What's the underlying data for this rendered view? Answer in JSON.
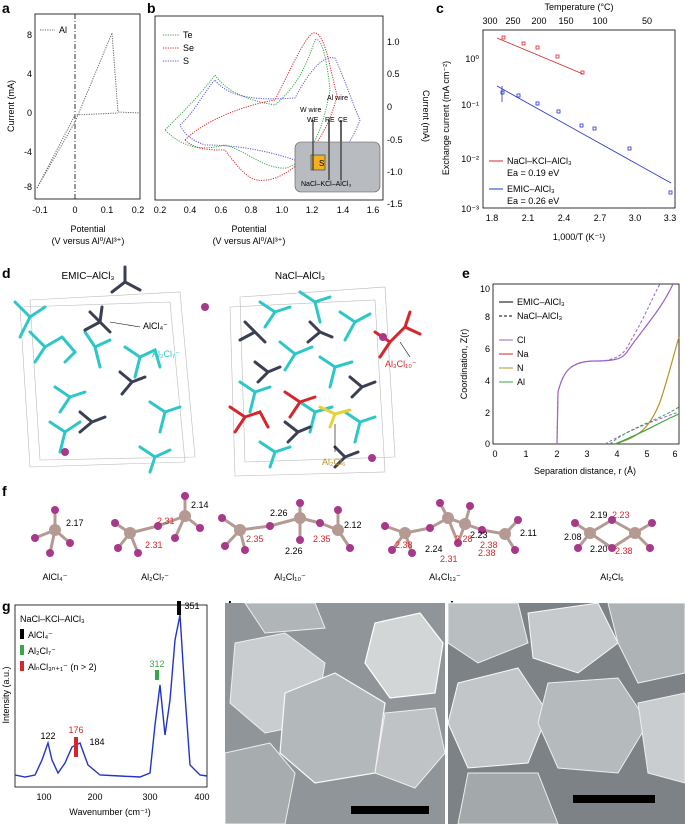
{
  "panels": {
    "a": {
      "letter": "a",
      "ylabel": "Current (mA)",
      "xlabel_line1": "Potential",
      "xlabel_line2": "(V versus Al⁰/Al³⁺)",
      "legend": "Al",
      "xticks": [
        "-0.1",
        "0",
        "0.1",
        "0.2"
      ],
      "yticks": [
        "8",
        "4",
        "0",
        "-4",
        "-8"
      ]
    },
    "b": {
      "letter": "b",
      "ylabel": "Current (mA)",
      "xlabel_line1": "Potential",
      "xlabel_line2": "(V versus Al⁰/Al³⁺)",
      "legend": [
        "Te",
        "Se",
        "S"
      ],
      "xticks": [
        "0.2",
        "0.4",
        "0.6",
        "0.8",
        "1.0",
        "1.2",
        "1.4",
        "1.6"
      ],
      "yticks": [
        "1.0",
        "0.5",
        "0",
        "-0.5",
        "-1.0",
        "-1.5"
      ],
      "inset": {
        "w_wire": "W wire",
        "al_wire": "Al wire",
        "we": "WE",
        "re": "RE",
        "ce": "CE",
        "s": "S",
        "electrolyte": "NaCl–KCl–AlCl₃"
      }
    },
    "c": {
      "letter": "c",
      "top_label": "Temperature (°C)",
      "top_ticks": [
        "300",
        "250",
        "200",
        "150",
        "100",
        "50"
      ],
      "ylabel": "Exchange current (mA cm⁻²)",
      "xlabel": "1,000/T (K⁻¹)",
      "xticks": [
        "1.8",
        "2.1",
        "2.4",
        "2.7",
        "3.0",
        "3.3"
      ],
      "yticks": [
        "10⁰",
        "10⁻¹",
        "10⁻²",
        "10⁻³"
      ],
      "legend1": "NaCl–KCl–AlCl₃",
      "legend1_ea": "Ea = 0.19 eV",
      "legend2": "EMIC–AlCl₃",
      "legend2_ea": "Ea = 0.26 eV"
    },
    "d": {
      "letter": "d",
      "title_left": "EMIC–AlCl₃",
      "title_right": "NaCl–AlCl₃",
      "lab_alcl4": "AlCl₄⁻",
      "lab_al2cl7": "Al₂Cl₇⁻",
      "lab_al3cl10": "Al₃Cl₁₀⁻",
      "lab_al2cl6": "Al₂Cl₆"
    },
    "e": {
      "letter": "e",
      "ylabel": "Coordination, Z(r)",
      "xlabel": "Separation distance, r (Å)",
      "xticks": [
        "0",
        "1",
        "2",
        "3",
        "4",
        "5",
        "6"
      ],
      "yticks": [
        "0",
        "2",
        "4",
        "6",
        "8",
        "10"
      ],
      "legend": [
        "EMIC–AlCl₃",
        "NaCl–AlCl₃",
        "Cl",
        "Na",
        "N",
        "Al"
      ]
    },
    "f": {
      "letter": "f",
      "molecules": [
        {
          "name": "AlCl₄⁻",
          "labels": [
            "2.17"
          ]
        },
        {
          "name": "Al₂Cl₇⁻",
          "labels": [
            "2.31",
            "2.14",
            "2.31"
          ]
        },
        {
          "name": "Al₃Cl₁₀⁻",
          "labels": [
            "2.26",
            "2.35",
            "2.35",
            "2.12",
            "2.26"
          ]
        },
        {
          "name": "Al₄Cl₁₃⁻",
          "labels": [
            "2.23",
            "2.38",
            "2.24",
            "2.28",
            "2.31",
            "2.38",
            "2.11",
            "2.38"
          ]
        },
        {
          "name": "Al₂Cl₆",
          "labels": [
            "2.19",
            "2.23",
            "2.08",
            "2.20",
            "2.38"
          ]
        }
      ]
    },
    "g": {
      "letter": "g",
      "ylabel": "Intensity (a.u.)",
      "xlabel": "Wavenumber (cm⁻¹)",
      "xticks": [
        "100",
        "200",
        "300",
        "400"
      ],
      "title": "NaCl–KCl–AlCl₃",
      "leg_alcl4": "AlCl₄⁻",
      "leg_al2cl7": "Al₂Cl₇⁻",
      "leg_alncl": "AlₙCl₃ₙ₊₁⁻ (n > 2)",
      "peaks": [
        "122",
        "176",
        "184",
        "312",
        "351"
      ]
    },
    "h": {
      "letter": "h"
    },
    "i": {
      "letter": "i"
    }
  },
  "colors": {
    "teal": "#2ec7c9",
    "navy": "#3a3f55",
    "red": "#d7262b",
    "yellow": "#e8d23a",
    "blue": "#2233cc",
    "green": "#3aa64a",
    "purple": "#9a62c9",
    "gold": "#b8902a",
    "atom_cl": "#a8388a",
    "atom_al": "#b59a93"
  }
}
